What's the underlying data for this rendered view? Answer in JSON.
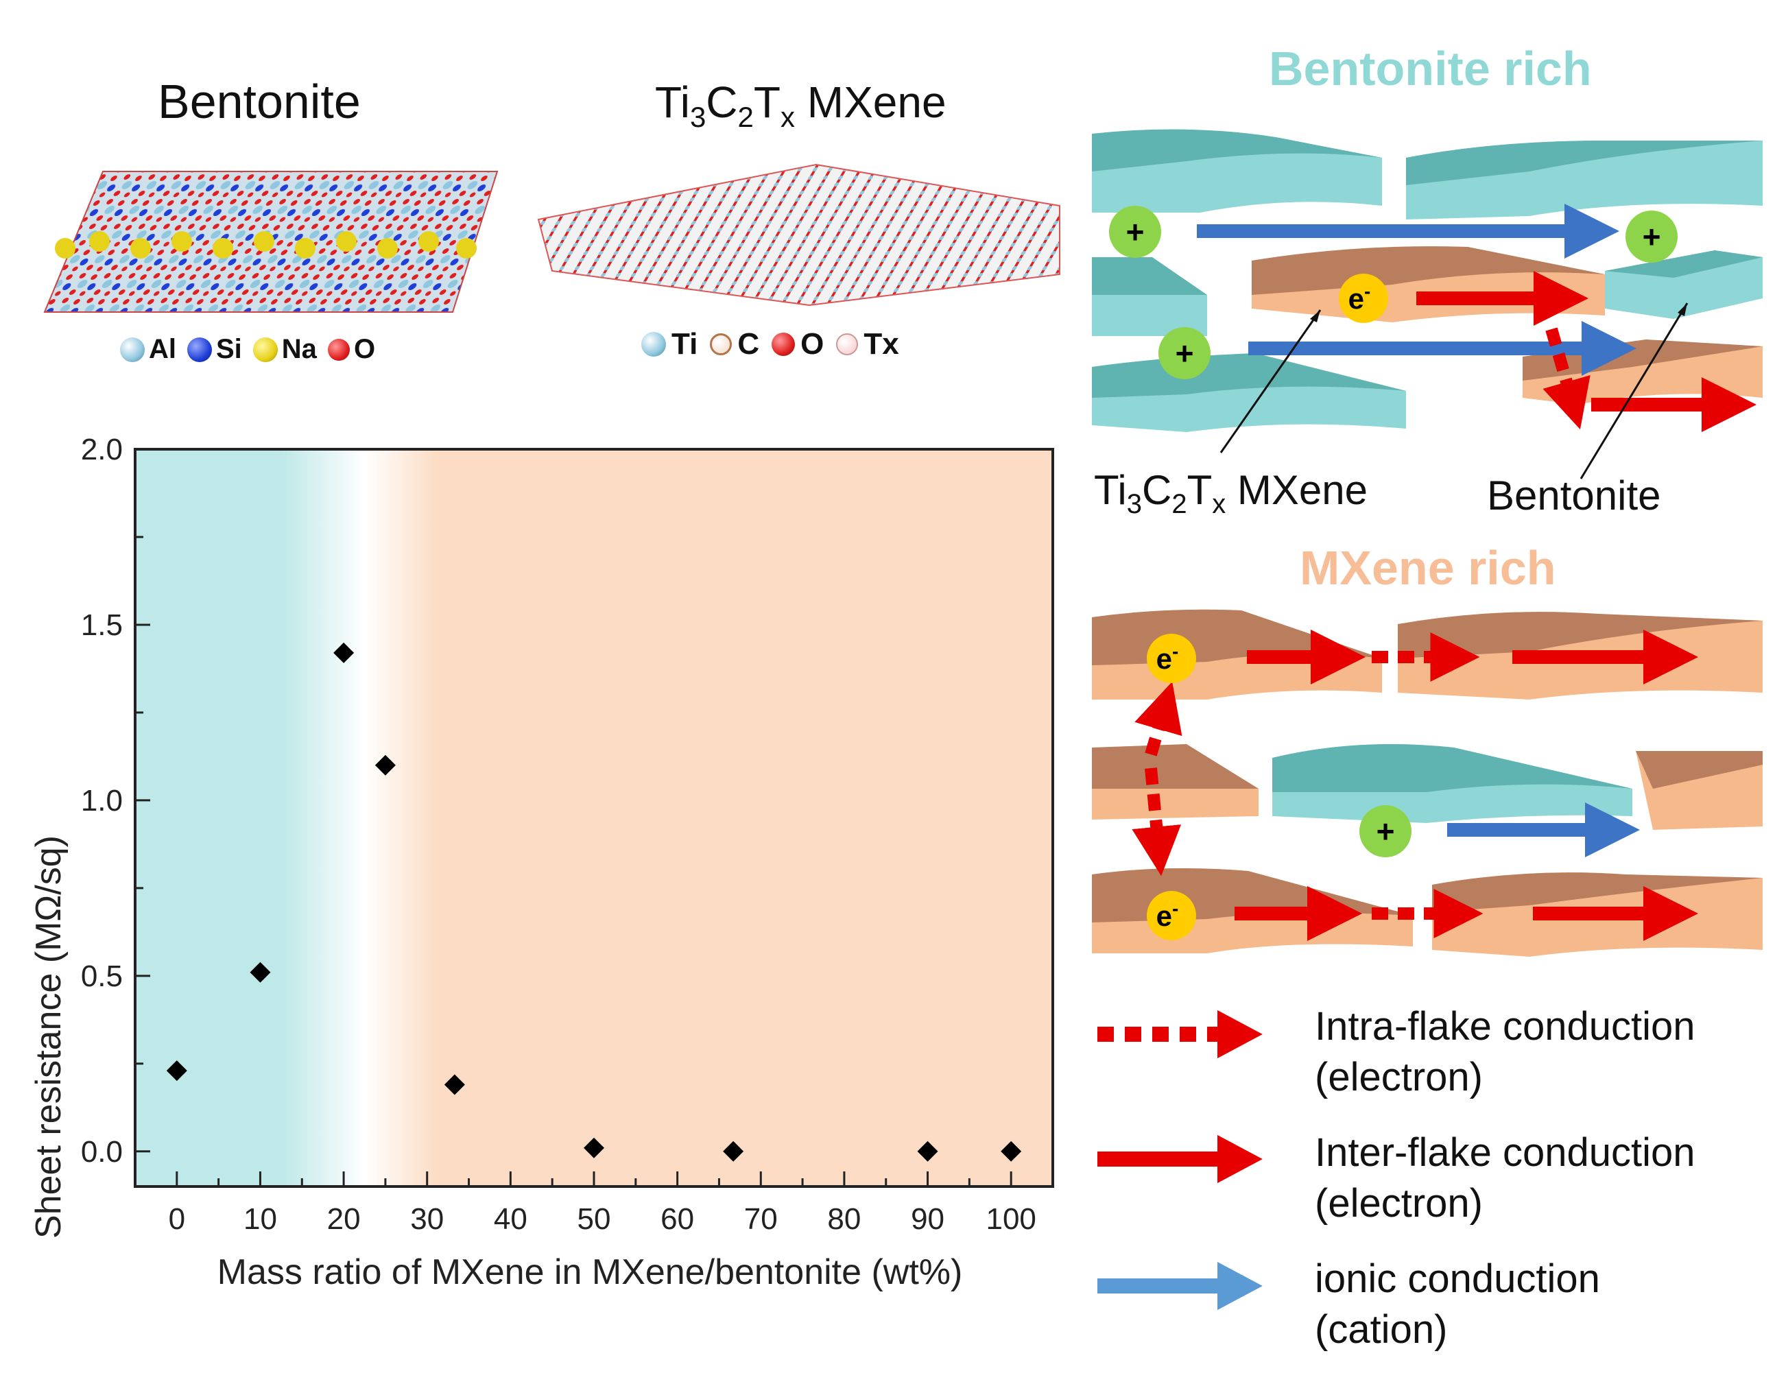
{
  "structures": {
    "bentonite": {
      "title": "Bentonite",
      "legend": [
        {
          "label": "Al",
          "color": "#8fc7df"
        },
        {
          "label": "Si",
          "color": "#1f3fd6"
        },
        {
          "label": "Na",
          "color": "#e6d21a"
        },
        {
          "label": "O",
          "color": "#e02020"
        }
      ]
    },
    "mxene": {
      "title_parts": {
        "a": "Ti",
        "s1": "3",
        "b": "C",
        "s2": "2",
        "c": "T",
        "s3": "x",
        "d": " MXene"
      },
      "legend": [
        {
          "label": "Ti",
          "color": "#8fc7df"
        },
        {
          "label": "C",
          "color": "#b5734a"
        },
        {
          "label": "O",
          "color": "#e02020"
        },
        {
          "label": "Tx",
          "color": "#f4c6c6"
        }
      ]
    }
  },
  "schematic": {
    "bentonite_rich_title": "Bentonite rich",
    "mxene_rich_title": "MXene rich",
    "cation_symbol": "+",
    "electron_symbol": "e",
    "electron_sup": "-",
    "label_mxene_parts": {
      "a": "Ti",
      "s1": "3",
      "b": "C",
      "s2": "2",
      "c": "T",
      "s3": "x",
      "d": " MXene"
    },
    "label_bentonite": "Bentonite",
    "colors": {
      "bentonite_top": "#5fb3b0",
      "bentonite_front": "#8fd6d6",
      "mxene_top": "#b87e5e",
      "mxene_front": "#f6b98c",
      "electron": "#e60000",
      "ion": "#3d74c6"
    }
  },
  "legend": [
    {
      "line1": "Intra-flake conduction",
      "line2": "(electron)",
      "style": "dotted",
      "color": "#e60000"
    },
    {
      "line1": "Inter-flake conduction",
      "line2": "(electron)",
      "style": "solid",
      "color": "#e60000"
    },
    {
      "line1": "ionic conduction",
      "line2": "(cation)",
      "style": "solid",
      "color": "#5b9bd5"
    }
  ],
  "chart_data": {
    "type": "scatter",
    "xlabel": "Mass ratio of MXene in MXene/bentonite (wt%)",
    "ylabel": "Sheet resistance (MΩ/sq)",
    "xlim": [
      -5,
      105
    ],
    "ylim": [
      -0.1,
      2.0
    ],
    "xticks": [
      0,
      10,
      20,
      30,
      40,
      50,
      60,
      70,
      80,
      90,
      100
    ],
    "yticks": [
      0.0,
      0.5,
      1.0,
      1.5,
      2.0
    ],
    "ytick_labels": [
      "0.0",
      "0.5",
      "1.0",
      "1.5",
      "2.0"
    ],
    "series": [
      {
        "x": [
          0,
          10,
          20,
          25,
          33.3,
          50,
          66.7,
          90,
          100
        ],
        "y": [
          0.23,
          0.51,
          1.42,
          1.1,
          0.19,
          0.01,
          0.0,
          0.0,
          0.0
        ]
      }
    ],
    "marker_color": "#000000",
    "background_regions": [
      "#bfe8e8",
      "#fcdcc4"
    ]
  }
}
